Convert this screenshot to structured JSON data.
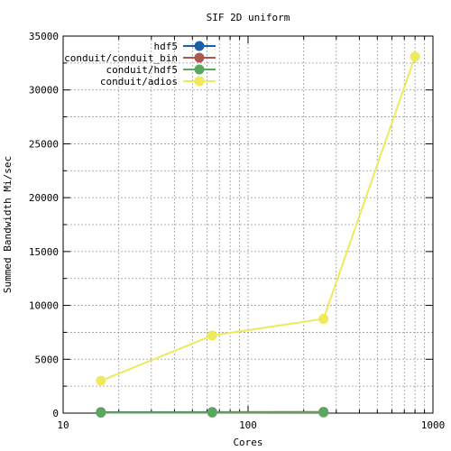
{
  "chart_data": {
    "type": "line",
    "title": "SIF 2D uniform",
    "xlabel": "Cores",
    "ylabel": "Summed Bandwidth Mi/sec",
    "xscale": "log",
    "xlim": [
      10,
      1000
    ],
    "ylim": [
      0,
      35000
    ],
    "xticks": [
      10,
      100,
      1000
    ],
    "yticks": [
      0,
      5000,
      10000,
      15000,
      20000,
      25000,
      30000,
      35000
    ],
    "grid": true,
    "legend_position": "top-left",
    "series": [
      {
        "name": "hdf5",
        "color": "#1a5fa8",
        "x": [
          16,
          64,
          256
        ],
        "y": [
          80,
          90,
          100
        ]
      },
      {
        "name": "conduit/conduit_bin",
        "color": "#a85a50",
        "x": [
          16,
          64,
          256
        ],
        "y": [
          60,
          70,
          80
        ]
      },
      {
        "name": "conduit/hdf5",
        "color": "#5aa85e",
        "x": [
          16,
          64,
          256
        ],
        "y": [
          40,
          50,
          60
        ]
      },
      {
        "name": "conduit/adios",
        "color": "#eeea5a",
        "x": [
          16,
          64,
          256,
          800
        ],
        "y": [
          3000,
          7200,
          8750,
          33100
        ]
      }
    ]
  }
}
